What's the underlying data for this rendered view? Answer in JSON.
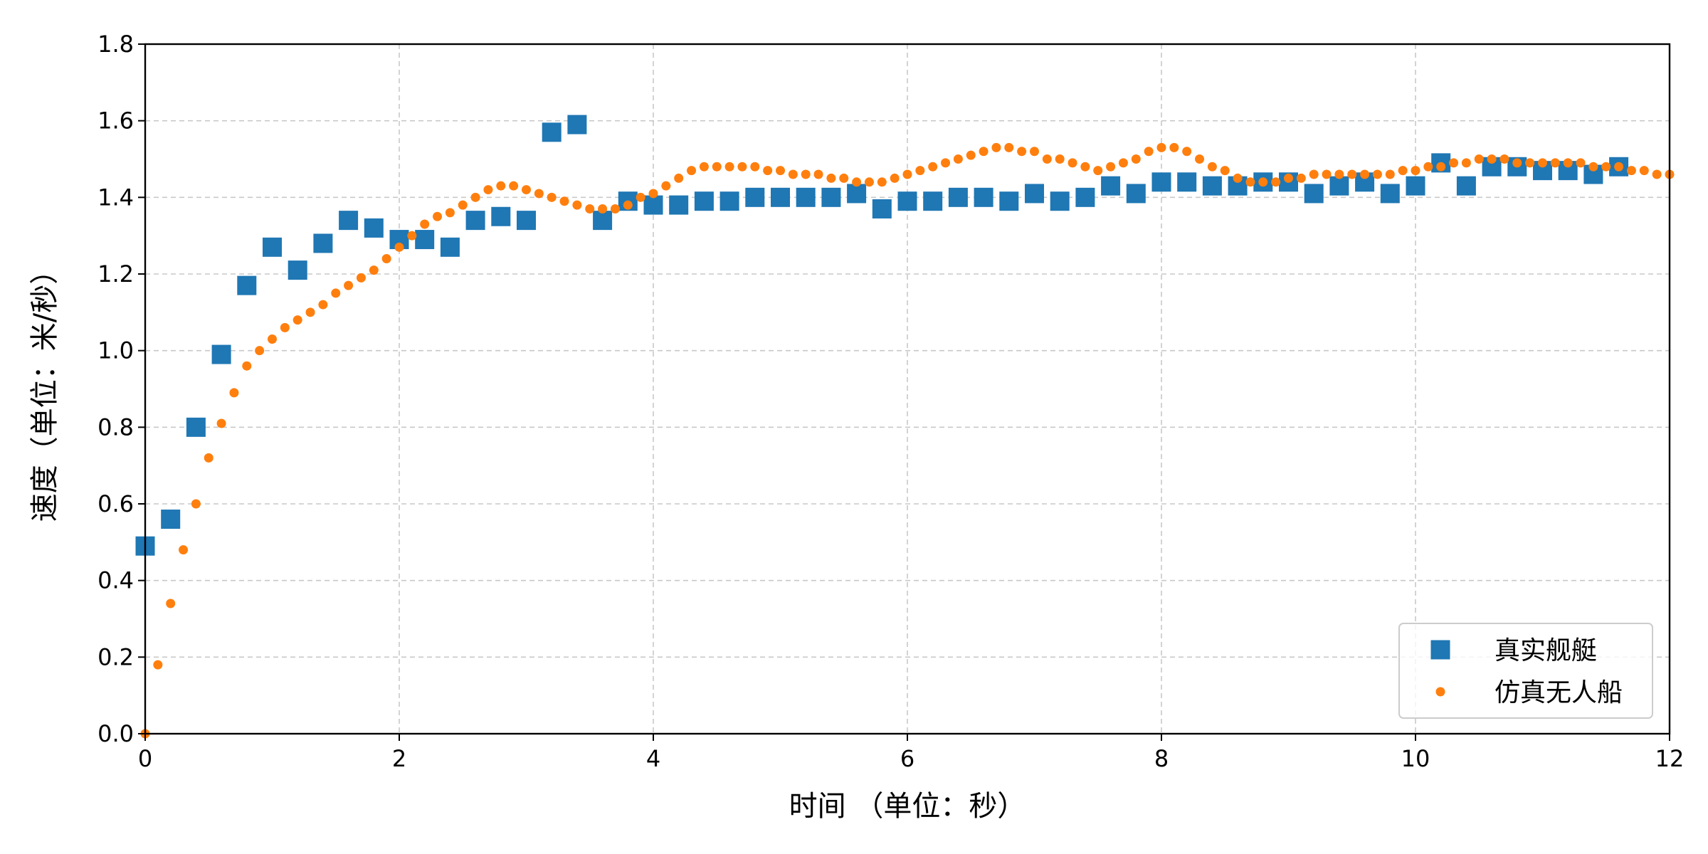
{
  "chart_data": {
    "type": "scatter",
    "xlabel": "时间 （单位：秒）",
    "ylabel": "速度（单位：米/秒）",
    "xlim": [
      0,
      12
    ],
    "ylim": [
      0,
      1.8
    ],
    "xticks": [
      0,
      2,
      4,
      6,
      8,
      10,
      12
    ],
    "yticks": [
      0.0,
      0.2,
      0.4,
      0.6,
      0.8,
      1.0,
      1.2,
      1.4,
      1.6,
      1.8
    ],
    "xtick_labels": [
      "0",
      "2",
      "4",
      "6",
      "8",
      "10",
      "12"
    ],
    "ytick_labels": [
      "0.0",
      "0.2",
      "0.4",
      "0.6",
      "0.8",
      "1.0",
      "1.2",
      "1.4",
      "1.6",
      "1.8"
    ],
    "grid": true,
    "legend_position": "bottom-right",
    "series": [
      {
        "name": "真实舰艇",
        "marker": "square",
        "color": "#1f77b4",
        "x": [
          0.0,
          0.2,
          0.4,
          0.6,
          0.8,
          1.0,
          1.2,
          1.4,
          1.6,
          1.8,
          2.0,
          2.2,
          2.4,
          2.6,
          2.8,
          3.0,
          3.2,
          3.4,
          3.6,
          3.8,
          4.0,
          4.2,
          4.4,
          4.6,
          4.8,
          5.0,
          5.2,
          5.4,
          5.6,
          5.8,
          6.0,
          6.2,
          6.4,
          6.6,
          6.8,
          7.0,
          7.2,
          7.4,
          7.6,
          7.8,
          8.0,
          8.2,
          8.4,
          8.6,
          8.8,
          9.0,
          9.2,
          9.4,
          9.6,
          9.8,
          10.0,
          10.2,
          10.4,
          10.6,
          10.8,
          11.0,
          11.2,
          11.4,
          11.6
        ],
        "y": [
          0.49,
          0.56,
          0.8,
          0.99,
          1.17,
          1.27,
          1.21,
          1.28,
          1.34,
          1.32,
          1.29,
          1.29,
          1.27,
          1.34,
          1.35,
          1.34,
          1.57,
          1.59,
          1.34,
          1.39,
          1.38,
          1.38,
          1.39,
          1.39,
          1.4,
          1.4,
          1.4,
          1.4,
          1.41,
          1.37,
          1.39,
          1.39,
          1.4,
          1.4,
          1.39,
          1.41,
          1.39,
          1.4,
          1.43,
          1.41,
          1.44,
          1.44,
          1.43,
          1.43,
          1.44,
          1.44,
          1.41,
          1.43,
          1.44,
          1.41,
          1.43,
          1.49,
          1.43,
          1.48,
          1.48,
          1.47,
          1.47,
          1.46,
          1.48
        ]
      },
      {
        "name": "仿真无人船",
        "marker": "circle",
        "color": "#ff7f0e",
        "x": [
          0.0,
          0.1,
          0.2,
          0.3,
          0.4,
          0.5,
          0.6,
          0.7,
          0.8,
          0.9,
          1.0,
          1.1,
          1.2,
          1.3,
          1.4,
          1.5,
          1.6,
          1.7,
          1.8,
          1.9,
          2.0,
          2.1,
          2.2,
          2.3,
          2.4,
          2.5,
          2.6,
          2.7,
          2.8,
          2.9,
          3.0,
          3.1,
          3.2,
          3.3,
          3.4,
          3.5,
          3.6,
          3.7,
          3.8,
          3.9,
          4.0,
          4.1,
          4.2,
          4.3,
          4.4,
          4.5,
          4.6,
          4.7,
          4.8,
          4.9,
          5.0,
          5.1,
          5.2,
          5.3,
          5.4,
          5.5,
          5.6,
          5.7,
          5.8,
          5.9,
          6.0,
          6.1,
          6.2,
          6.3,
          6.4,
          6.5,
          6.6,
          6.7,
          6.8,
          6.9,
          7.0,
          7.1,
          7.2,
          7.3,
          7.4,
          7.5,
          7.6,
          7.7,
          7.8,
          7.9,
          8.0,
          8.1,
          8.2,
          8.3,
          8.4,
          8.5,
          8.6,
          8.7,
          8.8,
          8.9,
          9.0,
          9.1,
          9.2,
          9.3,
          9.4,
          9.5,
          9.6,
          9.7,
          9.8,
          9.9,
          10.0,
          10.1,
          10.2,
          10.3,
          10.4,
          10.5,
          10.6,
          10.7,
          10.8,
          10.9,
          11.0,
          11.1,
          11.2,
          11.3,
          11.4,
          11.5,
          11.6,
          11.7,
          11.8,
          11.9,
          12.0
        ],
        "y": [
          0.0,
          0.18,
          0.34,
          0.48,
          0.6,
          0.72,
          0.81,
          0.89,
          0.96,
          1.0,
          1.03,
          1.06,
          1.08,
          1.1,
          1.12,
          1.15,
          1.17,
          1.19,
          1.21,
          1.24,
          1.27,
          1.3,
          1.33,
          1.35,
          1.36,
          1.38,
          1.4,
          1.42,
          1.43,
          1.43,
          1.42,
          1.41,
          1.4,
          1.39,
          1.38,
          1.37,
          1.37,
          1.37,
          1.38,
          1.4,
          1.41,
          1.43,
          1.45,
          1.47,
          1.48,
          1.48,
          1.48,
          1.48,
          1.48,
          1.47,
          1.47,
          1.46,
          1.46,
          1.46,
          1.45,
          1.45,
          1.44,
          1.44,
          1.44,
          1.45,
          1.46,
          1.47,
          1.48,
          1.49,
          1.5,
          1.51,
          1.52,
          1.53,
          1.53,
          1.52,
          1.52,
          1.5,
          1.5,
          1.49,
          1.48,
          1.47,
          1.48,
          1.49,
          1.5,
          1.52,
          1.53,
          1.53,
          1.52,
          1.5,
          1.48,
          1.47,
          1.45,
          1.44,
          1.44,
          1.44,
          1.45,
          1.45,
          1.46,
          1.46,
          1.46,
          1.46,
          1.46,
          1.46,
          1.46,
          1.47,
          1.47,
          1.48,
          1.48,
          1.49,
          1.49,
          1.5,
          1.5,
          1.5,
          1.49,
          1.49,
          1.49,
          1.49,
          1.49,
          1.49,
          1.48,
          1.48,
          1.48,
          1.47,
          1.47,
          1.46,
          1.46
        ]
      }
    ]
  }
}
